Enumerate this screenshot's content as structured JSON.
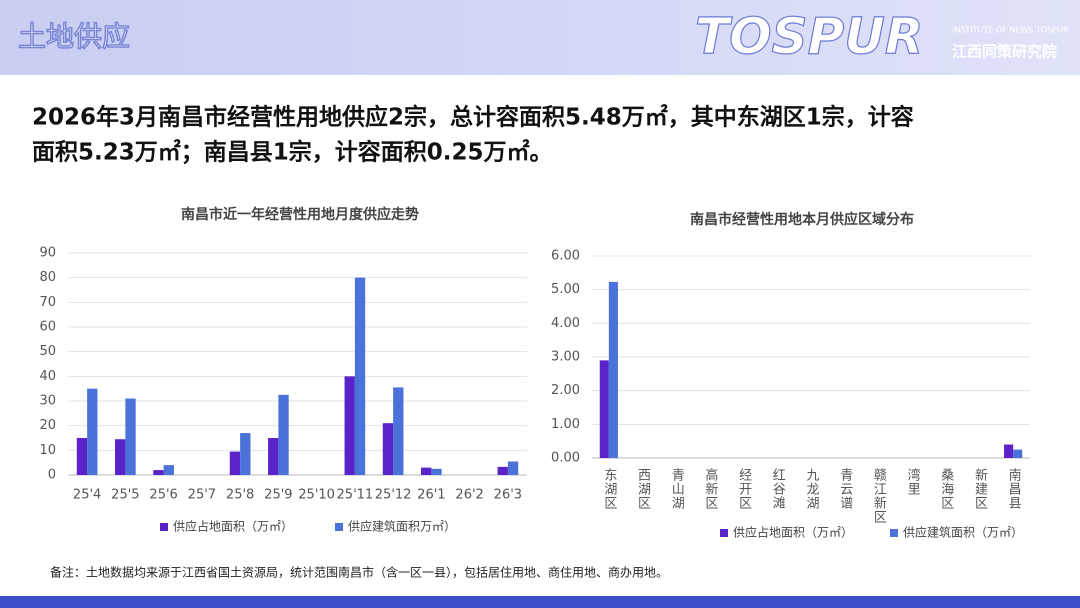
{
  "header": {
    "title": "土地供应",
    "logo": "TOSPUR",
    "logo_sub_en": "INSTITUTE OF NEWS TOSPUR",
    "logo_sub_cn": "江西同策研究院"
  },
  "headline": [
    "2026年3月南昌市经营性用地供应2宗，总计容面积5.48万㎡，其中东湖区1宗，计容",
    "面积5.23万㎡；南昌县1宗，计容面积0.25万㎡。"
  ],
  "note": "备注：土地数据均来源于江西省国土资源局，统计范围南昌市（含一区一县），包括居住用地、商住用地、商办用地。",
  "chart_data": [
    {
      "type": "bar",
      "title": "南昌市近一年经营性用地月度供应走势",
      "categories": [
        "25'4",
        "25'5",
        "25'6",
        "25'7",
        "25'8",
        "25'9",
        "25'10",
        "25'11",
        "25'12",
        "26'1",
        "26'2",
        "26'3"
      ],
      "series": [
        {
          "name": "供应占地面积（万㎡）",
          "color": "#5a23c8",
          "values": [
            15,
            14.5,
            2,
            0,
            9.5,
            15,
            0,
            40,
            21,
            3,
            0,
            3.3
          ]
        },
        {
          "name": "供应建筑面积万㎡）",
          "color": "#4a72d8",
          "values": [
            35,
            31,
            4,
            0,
            17,
            32.5,
            0,
            80,
            35.5,
            2.5,
            0,
            5.48
          ]
        }
      ],
      "ylim": [
        0,
        90
      ],
      "yticks": [
        0,
        10,
        20,
        30,
        40,
        50,
        60,
        70,
        80,
        90
      ],
      "grid": true
    },
    {
      "type": "bar",
      "title": "南昌市经营性用地本月供应区域分布",
      "categories": [
        "东湖区",
        "西湖区",
        "青山湖",
        "高新区",
        "经开区",
        "红谷滩",
        "九龙湖",
        "青云谱",
        "赣江新区",
        "湾里",
        "桑海区",
        "新建区",
        "南昌县"
      ],
      "series": [
        {
          "name": "供应占地面积（万㎡）",
          "color": "#5a23c8",
          "values": [
            2.9,
            0,
            0,
            0,
            0,
            0,
            0,
            0,
            0,
            0,
            0,
            0,
            0.4
          ]
        },
        {
          "name": "供应建筑面积（万㎡）",
          "color": "#4a72d8",
          "values": [
            5.23,
            0,
            0,
            0,
            0,
            0,
            0,
            0,
            0,
            0,
            0,
            0,
            0.25
          ]
        }
      ],
      "ylim": [
        0,
        6
      ],
      "yticks": [
        {
          "value": 0,
          "label": "0.00"
        },
        {
          "value": 1,
          "label": "1.00"
        },
        {
          "value": 2,
          "label": "2.00"
        },
        {
          "value": 3,
          "label": "3.00"
        },
        {
          "value": 4,
          "label": "4.00"
        },
        {
          "value": 5,
          "label": "5.00"
        },
        {
          "value": 6,
          "label": "6.00"
        }
      ],
      "grid": true,
      "vertical_categories": true
    }
  ]
}
